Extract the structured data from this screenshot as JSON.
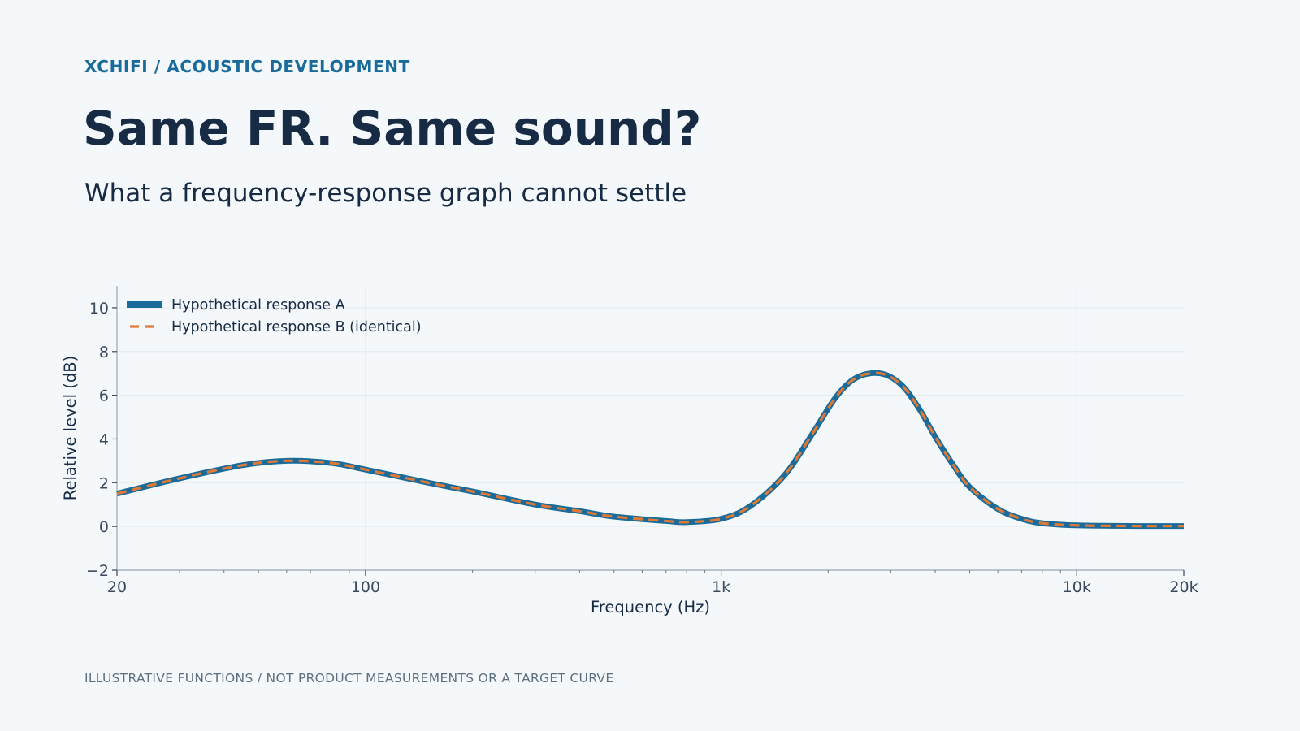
{
  "header": {
    "eyebrow": "XCHIFI  /  ACOUSTIC DEVELOPMENT",
    "title": "Same FR. Same sound?",
    "subtitle": "What a frequency-response graph cannot settle"
  },
  "footer": {
    "note": "ILLUSTRATIVE FUNCTIONS  /  NOT PRODUCT MEASUREMENTS OR A TARGET CURVE"
  },
  "colors": {
    "background": "#f4f8fb",
    "series_a": "#1a6b9a",
    "series_b": "#dd7a38",
    "title": "#172b44",
    "accent": "#1a6b9a",
    "grid": "#e3e9ef",
    "axis": "#9aa6b2"
  },
  "chart_data": {
    "type": "line",
    "xlabel": "Frequency (Hz)",
    "ylabel": "Relative level (dB)",
    "xscale": "log",
    "xlim": [
      20,
      20000
    ],
    "ylim": [
      -2,
      11
    ],
    "x_ticks": [
      {
        "value": 20,
        "label": "20"
      },
      {
        "value": 100,
        "label": "100"
      },
      {
        "value": 1000,
        "label": "1k"
      },
      {
        "value": 10000,
        "label": "10k"
      },
      {
        "value": 20000,
        "label": "20k"
      }
    ],
    "y_ticks": [
      {
        "value": -2,
        "label": "−2"
      },
      {
        "value": 0,
        "label": "0"
      },
      {
        "value": 2,
        "label": "2"
      },
      {
        "value": 4,
        "label": "4"
      },
      {
        "value": 6,
        "label": "6"
      },
      {
        "value": 8,
        "label": "8"
      },
      {
        "value": 10,
        "label": "10"
      }
    ],
    "grid": true,
    "legend_position": "top-left",
    "series": [
      {
        "name": "Hypothetical response A",
        "style": "solid",
        "x": [
          20,
          30,
          45,
          60,
          80,
          100,
          150,
          200,
          300,
          400,
          500,
          700,
          800,
          1000,
          1200,
          1500,
          1800,
          2100,
          2400,
          2800,
          3200,
          3600,
          4000,
          4500,
          5000,
          6000,
          7000,
          8000,
          10000,
          15000,
          20000
        ],
        "y": [
          1.5,
          2.2,
          2.8,
          3.0,
          2.9,
          2.6,
          2.0,
          1.6,
          1.0,
          0.7,
          0.45,
          0.25,
          0.2,
          0.35,
          0.9,
          2.3,
          4.2,
          5.9,
          6.8,
          7.0,
          6.5,
          5.4,
          4.1,
          2.8,
          1.8,
          0.8,
          0.35,
          0.15,
          0.05,
          0.02,
          0.02
        ]
      },
      {
        "name": "Hypothetical response B (identical)",
        "style": "dashed",
        "x": [
          20,
          30,
          45,
          60,
          80,
          100,
          150,
          200,
          300,
          400,
          500,
          700,
          800,
          1000,
          1200,
          1500,
          1800,
          2100,
          2400,
          2800,
          3200,
          3600,
          4000,
          4500,
          5000,
          6000,
          7000,
          8000,
          10000,
          15000,
          20000
        ],
        "y": [
          1.5,
          2.2,
          2.8,
          3.0,
          2.9,
          2.6,
          2.0,
          1.6,
          1.0,
          0.7,
          0.45,
          0.25,
          0.2,
          0.35,
          0.9,
          2.3,
          4.2,
          5.9,
          6.8,
          7.0,
          6.5,
          5.4,
          4.1,
          2.8,
          1.8,
          0.8,
          0.35,
          0.15,
          0.05,
          0.02,
          0.02
        ]
      }
    ]
  }
}
